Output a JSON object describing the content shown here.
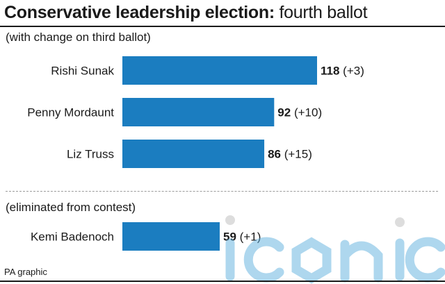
{
  "title_bold": "Conservative leadership election:",
  "title_rest": "fourth ballot",
  "subtitle": "(with change on third ballot)",
  "eliminated_note": "(eliminated from contest)",
  "source": "PA graphic",
  "watermark_text": "iconic",
  "colors": {
    "bar": "#1b7dc0",
    "text": "#1a1a1a",
    "watermark": "#5fb0de"
  },
  "chart_data": {
    "type": "bar",
    "orientation": "horizontal",
    "title": "Conservative leadership election: fourth ballot",
    "subtitle": "(with change on third ballot)",
    "categories": [
      "Rishi Sunak",
      "Penny Mordaunt",
      "Liz Truss",
      "Kemi Badenoch"
    ],
    "values": [
      118,
      92,
      86,
      59
    ],
    "changes": [
      "(+3)",
      "(+10)",
      "(+15)",
      "(+1)"
    ],
    "eliminated": [
      false,
      false,
      false,
      true
    ],
    "xlim": [
      0,
      118
    ],
    "grid": false,
    "legend": "none"
  }
}
